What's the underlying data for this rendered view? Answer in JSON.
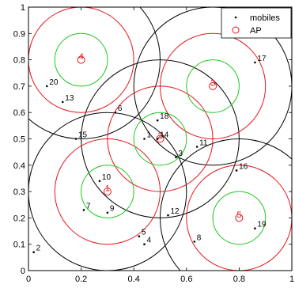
{
  "chart_data": {
    "type": "scatter",
    "title": "",
    "xlabel": "",
    "ylabel": "",
    "xlim": [
      0,
      1
    ],
    "ylim": [
      0,
      1
    ],
    "grid": false,
    "legend": {
      "position": "top-right",
      "entries": [
        {
          "label": "mobiles",
          "marker": "dot",
          "color": "#000000"
        },
        {
          "label": "AP",
          "marker": "circle",
          "color": "#e8141b"
        }
      ]
    },
    "x_ticks": [
      0,
      0.2,
      0.4,
      0.6,
      0.8,
      1
    ],
    "x_tick_labels": [
      "0",
      "0.2",
      "0.4",
      "0.6",
      "0.8",
      "1"
    ],
    "y_ticks": [
      0,
      0.1,
      0.2,
      0.3,
      0.4,
      0.5,
      0.6,
      0.7,
      0.8,
      0.9,
      1
    ],
    "y_tick_labels": [
      "0",
      "0.1",
      "0.2",
      "0.3",
      "0.4",
      "0.5",
      "0.6",
      "0.7",
      "0.8",
      "0.9",
      "1"
    ],
    "coverage_radii": {
      "inner_green": 0.1,
      "middle_red": 0.2,
      "outer_black": 0.3
    },
    "colors": {
      "inner": "#1ec81e",
      "middle": "#e8141b",
      "outer": "#000000",
      "ap": "#e8141b",
      "mobile": "#000000"
    },
    "access_points": [
      {
        "id": "1",
        "x": 0.3,
        "y": 0.3
      },
      {
        "id": "2",
        "x": 0.5,
        "y": 0.5
      },
      {
        "id": "3",
        "x": 0.7,
        "y": 0.7
      },
      {
        "id": "4",
        "x": 0.2,
        "y": 0.8
      },
      {
        "id": "5",
        "x": 0.8,
        "y": 0.2
      }
    ],
    "mobiles": [
      {
        "id": "1",
        "x": 0.44,
        "y": 0.5
      },
      {
        "id": "2",
        "x": 0.02,
        "y": 0.07
      },
      {
        "id": "3",
        "x": 0.56,
        "y": 0.43
      },
      {
        "id": "4",
        "x": 0.44,
        "y": 0.1
      },
      {
        "id": "5",
        "x": 0.42,
        "y": 0.13
      },
      {
        "id": "6",
        "x": 0.33,
        "y": 0.6
      },
      {
        "id": "7",
        "x": 0.21,
        "y": 0.23
      },
      {
        "id": "8",
        "x": 0.63,
        "y": 0.11
      },
      {
        "id": "9",
        "x": 0.3,
        "y": 0.22
      },
      {
        "id": "10",
        "x": 0.27,
        "y": 0.34
      },
      {
        "id": "11",
        "x": 0.64,
        "y": 0.47
      },
      {
        "id": "12",
        "x": 0.53,
        "y": 0.21
      },
      {
        "id": "13",
        "x": 0.13,
        "y": 0.64
      },
      {
        "id": "14",
        "x": 0.49,
        "y": 0.5
      },
      {
        "id": "15",
        "x": 0.18,
        "y": 0.5
      },
      {
        "id": "16",
        "x": 0.79,
        "y": 0.38
      },
      {
        "id": "17",
        "x": 0.86,
        "y": 0.79
      },
      {
        "id": "18",
        "x": 0.49,
        "y": 0.57
      },
      {
        "id": "19",
        "x": 0.86,
        "y": 0.16
      },
      {
        "id": "20",
        "x": 0.07,
        "y": 0.7
      }
    ]
  }
}
